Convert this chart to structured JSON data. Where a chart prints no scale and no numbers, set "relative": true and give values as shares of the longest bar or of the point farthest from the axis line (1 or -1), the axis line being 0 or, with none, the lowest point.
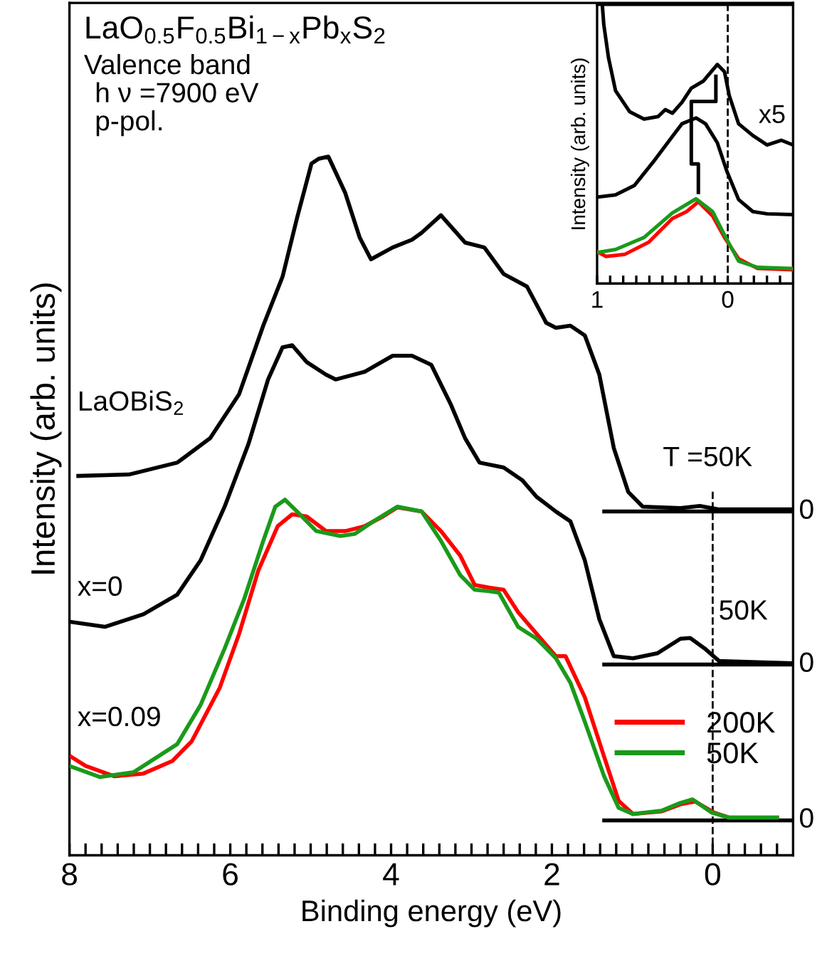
{
  "chart_data": [
    {
      "type": "line",
      "title": "LaO$_{0.5}$F$_{0.5}$Bi$_{1−x}$Pb$_{x}$S$_{2}$",
      "xlabel": "Binding energy (eV)",
      "ylabel": "Intensity (arb. units)",
      "relative": true,
      "tick_labels": "x",
      "legend": "bottom right",
      "line_style": "solid",
      "marker": "none",
      "annotations": [
        "Valence band",
        "h ν =7900 eV",
        "p-pol.",
        "LaOBiS$_{2}$",
        "x=0",
        "x=0.09",
        "T =50K",
        "50K"
      ],
      "xlim": [
        8,
        -1
      ],
      "xticks": [
        8,
        {
          "value": 7.8,
          "label": null
        },
        {
          "value": 7.6,
          "label": null
        },
        {
          "value": 7.4,
          "label": null
        },
        {
          "value": 7.2,
          "label": null
        },
        {
          "value": 7,
          "label": null
        },
        {
          "value": 6.8,
          "label": null
        },
        {
          "value": 6.6,
          "label": null
        },
        {
          "value": 6.4,
          "label": null
        },
        {
          "value": 6.2,
          "label": null
        },
        6,
        {
          "value": 5.8,
          "label": null
        },
        {
          "value": 5.6,
          "label": null
        },
        {
          "value": 5.4,
          "label": null
        },
        {
          "value": 5.2,
          "label": null
        },
        {
          "value": 5,
          "label": null
        },
        {
          "value": 4.8,
          "label": null
        },
        {
          "value": 4.6,
          "label": null
        },
        {
          "value": 4.4,
          "label": null
        },
        {
          "value": 4.2,
          "label": null
        },
        4,
        {
          "value": 3.8,
          "label": null
        },
        {
          "value": 3.6,
          "label": null
        },
        {
          "value": 3.4,
          "label": null
        },
        {
          "value": 3.2,
          "label": null
        },
        {
          "value": 3,
          "label": null
        },
        {
          "value": 2.8,
          "label": null
        },
        {
          "value": 2.6,
          "label": null
        },
        {
          "value": 2.4,
          "label": null
        },
        {
          "value": 2.2,
          "label": null
        },
        2,
        {
          "value": 1.8,
          "label": null
        },
        {
          "value": 1.6,
          "label": null
        },
        {
          "value": 1.4,
          "label": null
        },
        {
          "value": 1.2,
          "label": null
        },
        {
          "value": 1,
          "label": null
        },
        {
          "value": 0.8,
          "label": null
        },
        {
          "value": 0.6,
          "label": null
        },
        {
          "value": 0.4,
          "label": null
        },
        {
          "value": 0.2,
          "label": null
        },
        0,
        {
          "value": -0.2,
          "label": null
        },
        {
          "value": -0.4,
          "label": null
        },
        {
          "value": -0.6,
          "label": null
        },
        {
          "value": -0.8,
          "label": null
        }
      ],
      "ref_lines": [
        {
          "axis": "x",
          "value": 0,
          "line_style": "dashed",
          "color": "#000000"
        },
        {
          "axis": "y",
          "value": 0.492,
          "label": "0",
          "color": "#000000"
        },
        {
          "axis": "y",
          "value": 0.273,
          "label": "0",
          "color": "#000000"
        },
        {
          "axis": "y",
          "value": 0.05,
          "label": "0",
          "color": "#000000"
        }
      ],
      "series": [
        {
          "color": "#000000",
          "x": [
            7.89,
            7.26,
            6.66,
            6.25,
            5.89,
            5.59,
            5.35,
            5.17,
            4.99,
            4.9,
            4.78,
            4.57,
            4.39,
            4.25,
            3.98,
            3.74,
            3.62,
            3.38,
            3.08,
            2.84,
            2.6,
            2.31,
            2.07,
            1.95,
            1.77,
            1.59,
            1.41,
            1.23,
            1.05,
            0.87,
            0.4,
            0.16,
            -0.08,
            -0.98
          ],
          "values": [
            0.543,
            0.545,
            0.562,
            0.597,
            0.66,
            0.758,
            0.828,
            0.912,
            0.99,
            0.997,
            1,
            0.948,
            0.884,
            0.853,
            0.87,
            0.881,
            0.891,
            0.916,
            0.877,
            0.87,
            0.832,
            0.814,
            0.762,
            0.755,
            0.758,
            0.744,
            0.688,
            0.583,
            0.52,
            0.499,
            0.497,
            0.5,
            0.495,
            0.495
          ]
        },
        {
          "color": "#000000",
          "x": [
            7.98,
            7.56,
            7.08,
            6.66,
            6.37,
            6.07,
            5.77,
            5.53,
            5.35,
            5.23,
            5.05,
            4.81,
            4.69,
            4.33,
            3.98,
            3.74,
            3.5,
            3.26,
            3.08,
            2.9,
            2.6,
            2.37,
            2.19,
            1.95,
            1.77,
            1.59,
            1.41,
            1.23,
            0.99,
            0.69,
            0.4,
            0.28,
            0.1,
            -0.08,
            -0.98
          ],
          "values": [
            0.334,
            0.327,
            0.345,
            0.373,
            0.422,
            0.499,
            0.59,
            0.681,
            0.727,
            0.73,
            0.706,
            0.688,
            0.681,
            0.692,
            0.715,
            0.715,
            0.702,
            0.646,
            0.597,
            0.562,
            0.555,
            0.537,
            0.513,
            0.492,
            0.478,
            0.422,
            0.338,
            0.285,
            0.282,
            0.289,
            0.31,
            0.311,
            0.296,
            0.278,
            0.275
          ]
        },
        {
          "name": "200K",
          "color": "#ff0000",
          "x": [
            7.98,
            7.8,
            7.44,
            7.08,
            6.72,
            6.48,
            6.13,
            5.89,
            5.65,
            5.41,
            5.23,
            5.05,
            4.81,
            4.57,
            4.33,
            4.1,
            3.92,
            3.62,
            3.38,
            3.14,
            2.96,
            2.78,
            2.6,
            2.42,
            2.19,
            1.95,
            1.83,
            1.59,
            1.35,
            1.17,
            0.99,
            0.63,
            0.4,
            0.22,
            -0.02,
            -0.2,
            -0.8
          ],
          "values": [
            0.141,
            0.128,
            0.113,
            0.117,
            0.135,
            0.163,
            0.24,
            0.317,
            0.408,
            0.471,
            0.488,
            0.485,
            0.464,
            0.464,
            0.471,
            0.485,
            0.498,
            0.492,
            0.464,
            0.429,
            0.387,
            0.383,
            0.38,
            0.348,
            0.317,
            0.285,
            0.285,
            0.226,
            0.141,
            0.078,
            0.059,
            0.063,
            0.073,
            0.077,
            0.061,
            0.054,
            0.054
          ]
        },
        {
          "name": "50K",
          "color": "#1a9a1a",
          "x": [
            7.98,
            7.62,
            7.2,
            6.66,
            6.37,
            6.07,
            5.83,
            5.59,
            5.44,
            5.32,
            5.17,
            4.93,
            4.63,
            4.45,
            4.22,
            3.92,
            3.62,
            3.38,
            3.14,
            2.96,
            2.78,
            2.66,
            2.42,
            2.19,
            1.95,
            1.77,
            1.59,
            1.35,
            1.17,
            0.99,
            0.63,
            0.4,
            0.25,
            0.01,
            -0.2,
            -0.8
          ],
          "values": [
            0.127,
            0.112,
            0.119,
            0.159,
            0.215,
            0.296,
            0.366,
            0.45,
            0.499,
            0.509,
            0.492,
            0.464,
            0.457,
            0.46,
            0.478,
            0.499,
            0.492,
            0.45,
            0.401,
            0.38,
            0.378,
            0.376,
            0.327,
            0.31,
            0.282,
            0.247,
            0.191,
            0.113,
            0.068,
            0.059,
            0.064,
            0.075,
            0.08,
            0.061,
            0.054,
            0.054
          ]
        }
      ]
    },
    {
      "type": "line",
      "ylabel": "Intensity (arb. units)",
      "relative": true,
      "tick_labels": "x",
      "line_style": "solid",
      "marker": "none",
      "annotations": [
        "x5"
      ],
      "xlim": [
        1,
        -0.5
      ],
      "xticks": [
        1,
        {
          "value": 0.9,
          "label": null
        },
        {
          "value": 0.8,
          "label": null
        },
        {
          "value": 0.7,
          "label": null
        },
        {
          "value": 0.6,
          "label": null
        },
        {
          "value": 0.5,
          "label": null
        },
        {
          "value": 0.4,
          "label": null
        },
        {
          "value": 0.3,
          "label": null
        },
        {
          "value": 0.2,
          "label": null
        },
        {
          "value": 0.1,
          "label": null
        },
        0,
        {
          "value": -0.1,
          "label": null
        },
        {
          "value": -0.2,
          "label": null
        },
        {
          "value": -0.3,
          "label": null
        },
        {
          "value": -0.4,
          "label": null
        }
      ],
      "ref_lines": [
        {
          "axis": "x",
          "value": 0,
          "line_style": "dashed",
          "color": "#000000"
        }
      ],
      "series": [
        {
          "color": "#000000",
          "x": [
            0.96,
            0.949,
            0.913,
            0.859,
            0.75,
            0.641,
            0.533,
            0.478,
            0.424,
            0.351,
            0.279,
            0.188,
            0.08,
            0.025,
            -0.011,
            -0.083,
            -0.192,
            -0.301,
            -0.409,
            -0.5
          ],
          "values": [
            1,
            0.93,
            0.811,
            0.692,
            0.616,
            0.59,
            0.599,
            0.624,
            0.611,
            0.65,
            0.701,
            0.726,
            0.786,
            0.76,
            0.675,
            0.573,
            0.531,
            0.497,
            0.514,
            0.497
          ]
        },
        {
          "color": "#000000",
          "x": [
            1,
            0.859,
            0.714,
            0.569,
            0.46,
            0.351,
            0.243,
            0.17,
            0.08,
            0.007,
            -0.083,
            -0.192,
            -0.301,
            -0.5
          ],
          "values": [
            0.31,
            0.318,
            0.352,
            0.437,
            0.505,
            0.573,
            0.594,
            0.573,
            0.505,
            0.403,
            0.301,
            0.258,
            0.25,
            0.247
          ]
        },
        {
          "color": "#ff0000",
          "x": [
            1,
            0.931,
            0.786,
            0.605,
            0.424,
            0.315,
            0.225,
            0.116,
            0.025,
            -0.083,
            -0.228,
            -0.5
          ],
          "values": [
            0.114,
            0.097,
            0.105,
            0.148,
            0.233,
            0.258,
            0.293,
            0.242,
            0.165,
            0.089,
            0.054,
            0.049
          ]
        },
        {
          "color": "#1a9a1a",
          "x": [
            1,
            0.859,
            0.641,
            0.424,
            0.243,
            0.116,
            0.025,
            -0.083,
            -0.228,
            -0.5
          ],
          "values": [
            0.111,
            0.122,
            0.165,
            0.253,
            0.304,
            0.258,
            0.174,
            0.08,
            0.058,
            0.054
          ]
        },
        {
          "color": "#000000",
          "x": [
            0.091,
            0.091,
            0.279,
            0.279,
            0.225,
            0.225
          ],
          "values": [
            0.743,
            0.653,
            0.653,
            0.429,
            0.429,
            0.327
          ]
        }
      ]
    }
  ]
}
